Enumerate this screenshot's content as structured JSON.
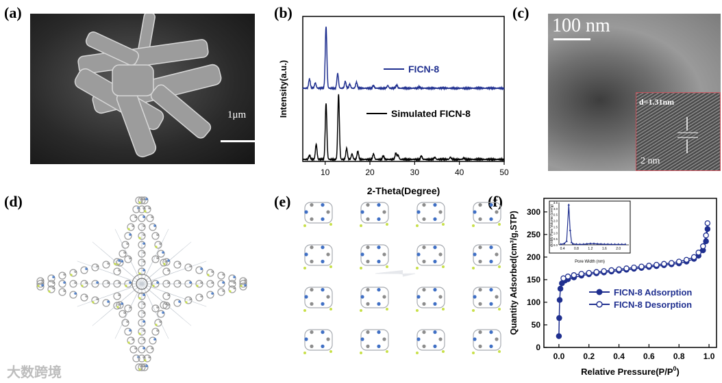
{
  "panels": {
    "a": {
      "label": "(a)",
      "scalebar": "1μm"
    },
    "b": {
      "label": "(b)"
    },
    "c": {
      "label": "(c)",
      "scalebar": "100 nm",
      "inset_d": "d=1.31nm",
      "inset_scale": "2 nm"
    },
    "d": {
      "label": "(d)"
    },
    "e": {
      "label": "(e)"
    },
    "f": {
      "label": "(f)"
    }
  },
  "watermark": "大数跨境",
  "chart_data": [
    {
      "type": "line",
      "panel": "b",
      "xlabel": "2-Theta(Degree)",
      "ylabel": "Intensity(a.u.)",
      "xlim": [
        5,
        50
      ],
      "xticks": [
        10,
        20,
        30,
        40,
        50
      ],
      "series": [
        {
          "name": "FICN-8",
          "color": "#1f2f8f",
          "peaks": [
            [
              6.5,
              14
            ],
            [
              7.8,
              8
            ],
            [
              10.2,
              92
            ],
            [
              12.8,
              22
            ],
            [
              14.5,
              10
            ],
            [
              15.5,
              6
            ],
            [
              17.0,
              9
            ],
            [
              20.8,
              4
            ],
            [
              24.0,
              4
            ],
            [
              26.0,
              5
            ],
            [
              31.0,
              2
            ]
          ]
        },
        {
          "name": "Simulated FICN-8",
          "color": "#000000",
          "peaks": [
            [
              6.5,
              6
            ],
            [
              8.0,
              22
            ],
            [
              10.2,
              82
            ],
            [
              13.0,
              95
            ],
            [
              14.8,
              16
            ],
            [
              16.0,
              8
            ],
            [
              17.3,
              12
            ],
            [
              20.8,
              8
            ],
            [
              23.0,
              5
            ],
            [
              25.8,
              9
            ],
            [
              26.3,
              6
            ],
            [
              31.5,
              5
            ],
            [
              34.5,
              3
            ],
            [
              38.0,
              3
            ],
            [
              41.0,
              2
            ]
          ]
        }
      ]
    },
    {
      "type": "line",
      "panel": "f",
      "xlabel": "Relative Pressure(P/P",
      "xlabel_sup": "0",
      "xlabel_end": ")",
      "ylabel": "Quantity Adsorbed(cm³/g,STP)",
      "xlim": [
        -0.1,
        1.05
      ],
      "ylim": [
        0,
        330
      ],
      "xticks": [
        "0.0",
        "0.2",
        "0.4",
        "0.6",
        "0.8",
        "1.0"
      ],
      "yticks": [
        "0",
        "50",
        "100",
        "150",
        "200",
        "250",
        "300"
      ],
      "color": "#1f2f8f",
      "series": [
        {
          "name": "FICN-8 Adsorption",
          "marker": "filled",
          "x": [
            0.0,
            0.002,
            0.005,
            0.01,
            0.02,
            0.04,
            0.06,
            0.1,
            0.15,
            0.2,
            0.25,
            0.3,
            0.35,
            0.4,
            0.45,
            0.5,
            0.55,
            0.6,
            0.65,
            0.7,
            0.75,
            0.8,
            0.85,
            0.9,
            0.93,
            0.96,
            0.98,
            0.99
          ],
          "y": [
            25,
            65,
            105,
            130,
            142,
            148,
            151,
            155,
            159,
            162,
            164,
            166,
            168,
            170,
            172,
            174,
            176,
            178,
            180,
            182,
            184,
            186,
            190,
            196,
            203,
            215,
            235,
            262
          ]
        },
        {
          "name": "FICN-8 Desorption",
          "marker": "open",
          "x": [
            0.99,
            0.98,
            0.96,
            0.93,
            0.9,
            0.85,
            0.8,
            0.75,
            0.7,
            0.65,
            0.6,
            0.55,
            0.5,
            0.45,
            0.4,
            0.35,
            0.3,
            0.25,
            0.2,
            0.15,
            0.1,
            0.06,
            0.03
          ],
          "y": [
            275,
            248,
            224,
            210,
            200,
            194,
            190,
            187,
            185,
            183,
            181,
            179,
            177,
            175,
            173,
            171,
            169,
            167,
            165,
            163,
            160,
            157,
            153
          ]
        }
      ],
      "inset": {
        "xlabel": "Pore Width (nm)",
        "ylabel": "dV/dW Pore Volume (cm³/g)",
        "xlim": [
          0.3,
          2.3
        ],
        "ylim": [
          0,
          3.5
        ],
        "xticks": [
          "0.4",
          "0.8",
          "1.2",
          "1.6",
          "2.0"
        ],
        "yticks": [
          "0.0",
          "0.5",
          "1.0",
          "1.5",
          "2.0",
          "2.5",
          "3.0",
          "3.5"
        ],
        "x": [
          0.35,
          0.45,
          0.52,
          0.58,
          0.62,
          0.66,
          0.7,
          0.8,
          0.9,
          1.0,
          1.1,
          1.2,
          1.3,
          1.4,
          1.5,
          1.6,
          1.7,
          1.8,
          1.9,
          2.0,
          2.1,
          2.2
        ],
        "y": [
          0.05,
          0.1,
          0.3,
          3.3,
          1.2,
          0.2,
          0.08,
          0.05,
          0.04,
          0.05,
          0.08,
          0.1,
          0.1,
          0.08,
          0.06,
          0.05,
          0.05,
          0.04,
          0.04,
          0.04,
          0.04,
          0.04
        ]
      }
    }
  ]
}
